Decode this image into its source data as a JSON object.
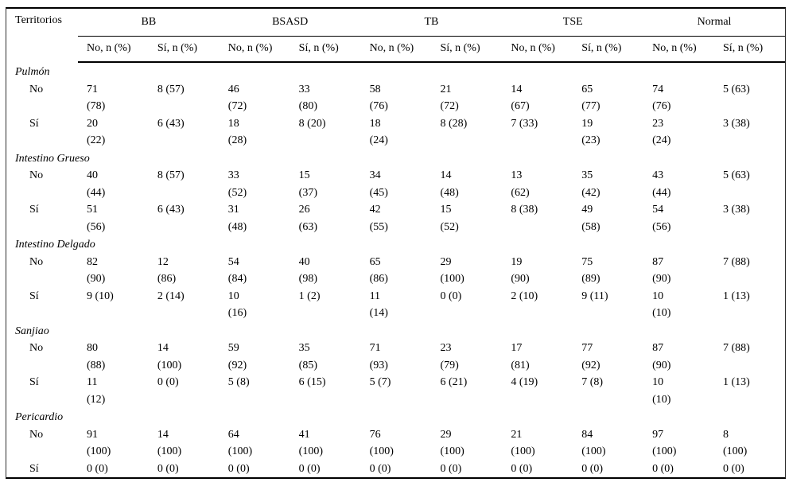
{
  "table": {
    "territories_header": "Territorios",
    "sub_no_label": "No, n (%)",
    "sub_si_label": "Sí, n (%)",
    "groups": [
      "BB",
      "BSASD",
      "TB",
      "TSE",
      "Normal"
    ],
    "sections": [
      {
        "label": "Pulmón",
        "rows": [
          {
            "label": "No",
            "cells": [
              "71\n(78)",
              "8 (57)",
              "46\n(72)",
              "33\n(80)",
              "58\n(76)",
              "21\n(72)",
              "14\n(67)",
              "65\n(77)",
              "74\n(76)",
              "5 (63)"
            ]
          },
          {
            "label": "Sí",
            "cells": [
              "20\n(22)",
              "6 (43)",
              "18\n(28)",
              "8 (20)",
              "18\n(24)",
              "8 (28)",
              "7 (33)",
              "19\n(23)",
              "23\n(24)",
              "3 (38)"
            ]
          }
        ]
      },
      {
        "label": "Intestino Grueso",
        "rows": [
          {
            "label": "No",
            "cells": [
              "40\n(44)",
              "8 (57)",
              "33\n(52)",
              "15\n(37)",
              "34\n(45)",
              "14\n(48)",
              "13\n(62)",
              "35\n(42)",
              "43\n(44)",
              "5 (63)"
            ]
          },
          {
            "label": "Sí",
            "cells": [
              "51\n(56)",
              "6 (43)",
              "31\n(48)",
              "26\n(63)",
              "42\n(55)",
              "15\n(52)",
              "8 (38)",
              "49\n(58)",
              "54\n(56)",
              "3 (38)"
            ]
          }
        ]
      },
      {
        "label": "Intestino Delgado",
        "rows": [
          {
            "label": "No",
            "cells": [
              "82\n(90)",
              "12\n(86)",
              "54\n(84)",
              "40\n(98)",
              "65\n(86)",
              "29\n(100)",
              "19\n(90)",
              "75\n(89)",
              "87\n(90)",
              "7 (88)"
            ]
          },
          {
            "label": "Sí",
            "cells": [
              "9 (10)",
              "2 (14)",
              "10\n(16)",
              "1 (2)",
              "11\n(14)",
              "0 (0)",
              "2 (10)",
              "9 (11)",
              "10\n(10)",
              "1 (13)"
            ]
          }
        ]
      },
      {
        "label": "Sanjiao",
        "rows": [
          {
            "label": "No",
            "cells": [
              "80\n(88)",
              "14\n(100)",
              "59\n(92)",
              "35\n(85)",
              "71\n(93)",
              "23\n(79)",
              "17\n(81)",
              "77\n(92)",
              "87\n(90)",
              "7 (88)"
            ]
          },
          {
            "label": "Sí",
            "cells": [
              "11\n(12)",
              "0 (0)",
              "5 (8)",
              "6 (15)",
              "5 (7)",
              "6 (21)",
              "4 (19)",
              "7 (8)",
              "10\n(10)",
              "1 (13)"
            ]
          }
        ]
      },
      {
        "label": "Pericardio",
        "rows": [
          {
            "label": "No",
            "cells": [
              "91\n(100)",
              "14\n(100)",
              "64\n(100)",
              "41\n(100)",
              "76\n(100)",
              "29\n(100)",
              "21\n(100)",
              "84\n(100)",
              "97\n(100)",
              "8\n(100)"
            ]
          },
          {
            "label": "Sí",
            "cells": [
              "0 (0)",
              "0 (0)",
              "0 (0)",
              "0 (0)",
              "0 (0)",
              "0 (0)",
              "0 (0)",
              "0 (0)",
              "0 (0)",
              "0 (0)"
            ]
          }
        ]
      }
    ],
    "colors": {
      "text": "#000000",
      "rule": "#000000",
      "background": "#ffffff"
    }
  }
}
